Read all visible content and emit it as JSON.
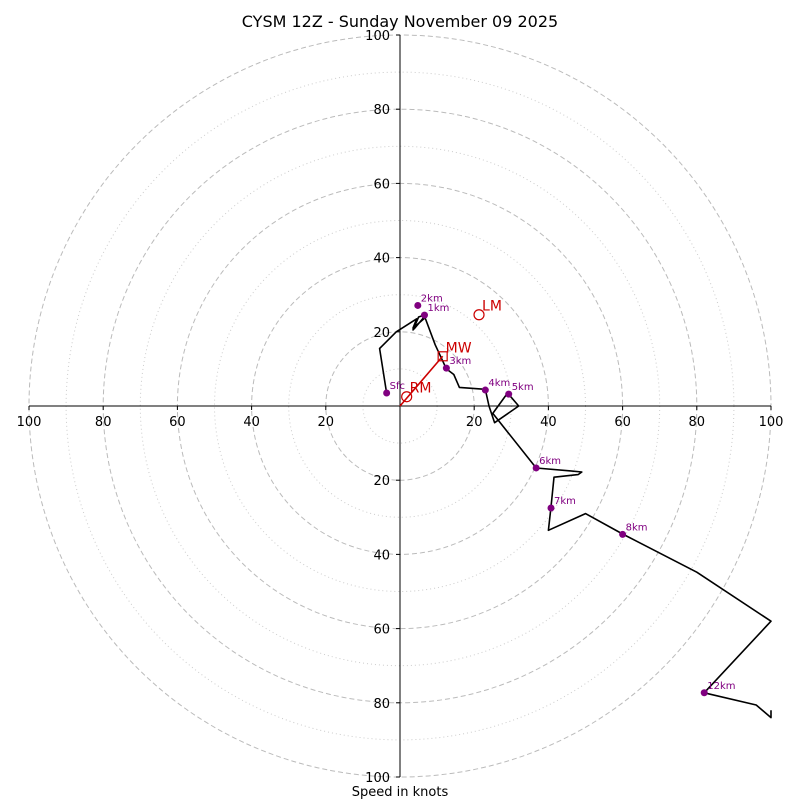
{
  "chart_data": {
    "type": "line",
    "title": "CYSM 12Z - Sunday November 09 2025",
    "xlabel": "Speed in knots",
    "ylabel": "",
    "xlim": [
      -100,
      100
    ],
    "ylim": [
      -100,
      100
    ],
    "rings_major": [
      20,
      40,
      60,
      80,
      100
    ],
    "rings_minor": [
      10,
      30,
      50,
      70,
      90
    ],
    "x_ticks": [
      "100",
      "80",
      "60",
      "40",
      "20",
      "20",
      "40",
      "60",
      "80",
      "100"
    ],
    "x_tick_values": [
      -100,
      -80,
      -60,
      -40,
      -20,
      20,
      40,
      60,
      80,
      100
    ],
    "y_ticks": [
      "100",
      "80",
      "60",
      "40",
      "20",
      "20",
      "40",
      "60",
      "80",
      "100"
    ],
    "y_tick_values": [
      100,
      80,
      60,
      40,
      20,
      -20,
      -40,
      -60,
      -80,
      -100
    ],
    "hodograph": {
      "color": "#000000",
      "points": [
        [
          -3.6,
          3.5
        ],
        [
          -5.5,
          15.5
        ],
        [
          -1,
          20
        ],
        [
          4.5,
          23.5
        ],
        [
          3.5,
          21
        ],
        [
          7,
          24
        ],
        [
          6.5,
          24
        ],
        [
          4,
          21
        ],
        [
          3.5,
          20.5
        ],
        [
          5,
          24
        ],
        [
          6.5,
          24.5
        ],
        [
          9.5,
          16.5
        ],
        [
          12.5,
          10
        ],
        [
          14.5,
          8.5
        ],
        [
          16,
          5
        ],
        [
          23,
          4.5
        ],
        [
          24,
          0
        ],
        [
          25.5,
          -4.5
        ],
        [
          32,
          0
        ],
        [
          29,
          3.5
        ],
        [
          25,
          -2
        ],
        [
          36.7,
          -16.7
        ],
        [
          46,
          -17.5
        ],
        [
          49,
          -17.8
        ],
        [
          48,
          -18.5
        ],
        [
          41.5,
          -19.2
        ],
        [
          40.7,
          -27.2
        ],
        [
          40,
          -33.5
        ],
        [
          50,
          -29
        ],
        [
          60,
          -34.5
        ],
        [
          80,
          -44.8
        ],
        [
          100,
          -58
        ],
        [
          82,
          -77.3
        ],
        [
          96,
          -80.6
        ],
        [
          100,
          -84
        ],
        [
          100,
          -82
        ]
      ]
    },
    "height_markers": [
      {
        "label": "Sfc",
        "x": -3.6,
        "y": 3.5
      },
      {
        "label": "1km",
        "x": 6.6,
        "y": 24.5
      },
      {
        "label": "2km",
        "x": 4.8,
        "y": 27.1
      },
      {
        "label": "3km",
        "x": 12.5,
        "y": 10.2
      },
      {
        "label": "4km",
        "x": 23.0,
        "y": 4.3
      },
      {
        "label": "5km",
        "x": 29.3,
        "y": 3.2
      },
      {
        "label": "6km",
        "x": 36.7,
        "y": -16.7
      },
      {
        "label": "7km",
        "x": 40.7,
        "y": -27.5
      },
      {
        "label": "8km",
        "x": 60.0,
        "y": -34.6
      },
      {
        "label": "12km",
        "x": 82.0,
        "y": -77.3
      }
    ],
    "storm_motions": [
      {
        "label": "LM",
        "x": 21.3,
        "y": 24.6
      },
      {
        "label": "MW",
        "x": 11.5,
        "y": 13.4
      },
      {
        "label": "RM",
        "x": 1.8,
        "y": 2.5
      }
    ],
    "mean_wind_vector": {
      "from": [
        0,
        0
      ],
      "to": [
        11.5,
        13.4
      ],
      "color": "#cc0000"
    },
    "colors": {
      "hodograph": "#000000",
      "markers": "#800080",
      "storm_motion": "#cc0000",
      "rings": "#bbbbbb",
      "axes": "#000000"
    }
  }
}
